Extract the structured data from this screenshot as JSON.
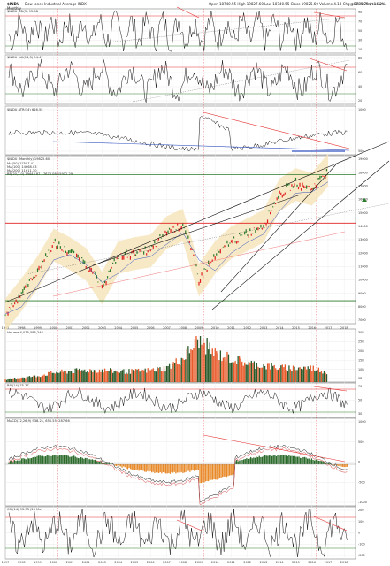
{
  "header": {
    "symbol": "$INDU",
    "name": "Dow Jones Industrial Average INDX",
    "period": "Monthly",
    "watermark": "@StockCharts.com",
    "quote": "Open 18740.55  High 19827.60  Low 18740.55  Close 19825.60  Volume 4.1B  Chg +2775.79 (+16.2%)"
  },
  "panels": {
    "rsi_top": {
      "label": "$INDU RSI(5) 95.58",
      "ticks": [
        "90",
        "70",
        "50",
        "30",
        "10"
      ]
    },
    "stoch": {
      "label": "$INDU %K(14,3) 94.47",
      "ticks": [
        "80",
        "60",
        "40",
        "20"
      ]
    },
    "atr": {
      "label": "$INDU ATR(14) 616.55",
      "ticks": [
        "1000",
        "500"
      ]
    },
    "price": {
      "label": "$INDU (Monthly) 19825.60",
      "legend": [
        "MA(50) 17507.41",
        "MA(100) 14668.03",
        "MA(200) 11611.30",
        "BB(20,2.0) 19443.87  17678.08  15912.29"
      ],
      "ticks": [
        "19000",
        "18000",
        "17000",
        "16000",
        "15000",
        "14000",
        "13000",
        "12000",
        "11000",
        "10000",
        "9000",
        "8000",
        "7000"
      ]
    },
    "volume": {
      "label": "Volume 4,075,585,248",
      "ticks": [
        "30B",
        "25B",
        "20B",
        "15B",
        "10B",
        "5B"
      ]
    },
    "rsi14": {
      "label": "RSI(14) 75.37",
      "ticks": [
        "70",
        "50",
        "30"
      ]
    },
    "macd": {
      "label": "MACD(12,26,9) 938.21, 650.55, 287.66",
      "ticks": [
        "1000",
        "500",
        "0",
        "-500",
        "-1000"
      ]
    },
    "cci": {
      "label": "CCI(14) 93.33 (20 Mo)",
      "ticks": [
        "200",
        "100",
        "0",
        "-100",
        "-200"
      ]
    }
  },
  "x_axis": {
    "years": [
      "1997",
      "1998",
      "1999",
      "2000",
      "2001",
      "2002",
      "2003",
      "2004",
      "2005",
      "2006",
      "2007",
      "2008",
      "2009",
      "2010",
      "2011",
      "2012",
      "2013",
      "2014",
      "2015",
      "2016",
      "2017",
      "2018"
    ]
  },
  "colors": {
    "up": "#2a7a2a",
    "down": "#e02020",
    "band": "#f6e3b8",
    "trend": "#e53030",
    "vline": "#e02020"
  },
  "chart_data": {
    "type": "line",
    "title": "Dow Jones Industrial Average (Monthly)",
    "x": [
      "1997",
      "1998",
      "1999",
      "2000",
      "2001",
      "2002",
      "2003",
      "2004",
      "2005",
      "2006",
      "2007",
      "2008",
      "2009",
      "2010",
      "2011",
      "2012",
      "2013",
      "2014",
      "2015",
      "2016",
      "2017"
    ],
    "series": [
      {
        "name": "$INDU",
        "values": [
          6800,
          7900,
          9300,
          11400,
          10700,
          9900,
          8300,
          10400,
          10700,
          10900,
          12500,
          13200,
          8800,
          10400,
          11600,
          12300,
          13100,
          16500,
          17800,
          17200,
          19825
        ]
      },
      {
        "name": "Volume (B)",
        "values": [
          1,
          2,
          2.5,
          4,
          4.5,
          5,
          5,
          4.5,
          4.5,
          5,
          6,
          10,
          18,
          12,
          10,
          8,
          7,
          6,
          6,
          6,
          4.1
        ]
      }
    ],
    "ylim": [
      6500,
      20500
    ],
    "log_scale": true
  }
}
